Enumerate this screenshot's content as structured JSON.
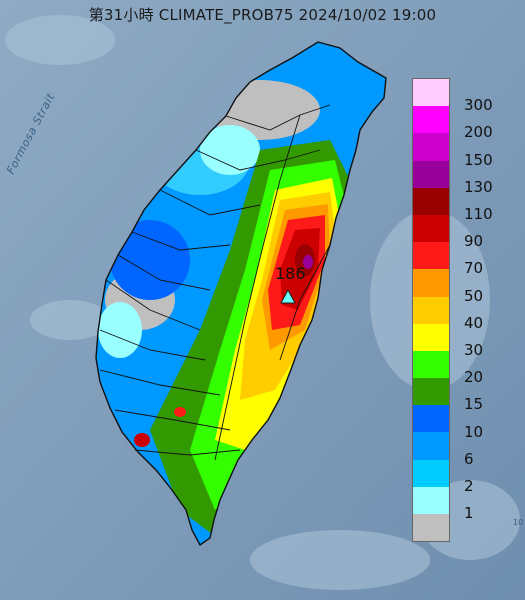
{
  "header": {
    "title": "第31小時  CLIMATE_PROB75 2024/10/02 19:00"
  },
  "map": {
    "sea_label": "Formosa Strait",
    "peak_value": "186",
    "edge_text": "10"
  },
  "legend": {
    "items": [
      {
        "label": "300",
        "color": "#ffccff"
      },
      {
        "label": "200",
        "color": "#ff00ff"
      },
      {
        "label": "150",
        "color": "#cc00cc"
      },
      {
        "label": "130",
        "color": "#990099"
      },
      {
        "label": "110",
        "color": "#990000"
      },
      {
        "label": "90",
        "color": "#cc0000"
      },
      {
        "label": "70",
        "color": "#ff1a1a"
      },
      {
        "label": "50",
        "color": "#ff9900"
      },
      {
        "label": "40",
        "color": "#ffcc00"
      },
      {
        "label": "30",
        "color": "#ffff00"
      },
      {
        "label": "20",
        "color": "#33ff00"
      },
      {
        "label": "15",
        "color": "#339900"
      },
      {
        "label": "10",
        "color": "#0066ff"
      },
      {
        "label": "6",
        "color": "#0099ff"
      },
      {
        "label": "2",
        "color": "#00ccff"
      },
      {
        "label": "1",
        "color": "#99ffff"
      },
      {
        "label": "",
        "color": "#bfbfbf"
      }
    ]
  }
}
